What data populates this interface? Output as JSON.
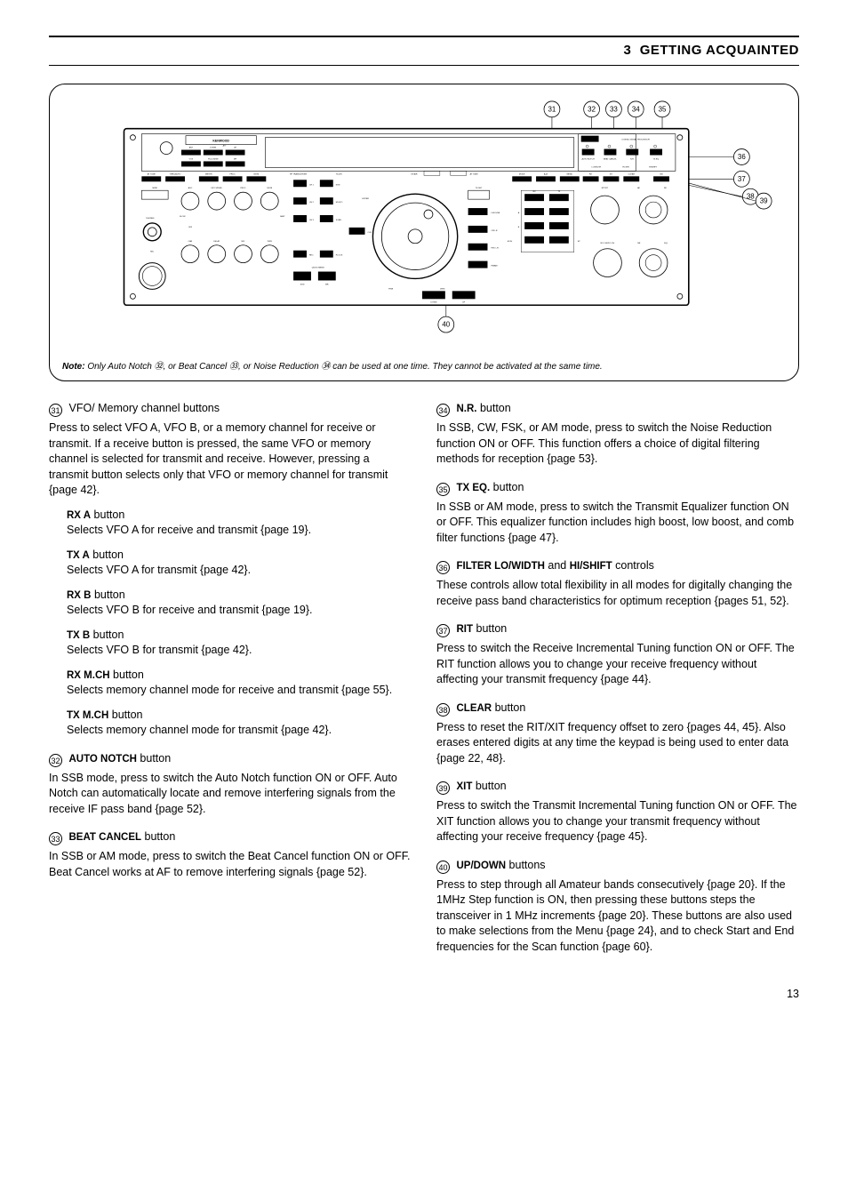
{
  "header": {
    "section_number": "3",
    "section_title": "GETTING ACQUAINTED"
  },
  "diagram": {
    "callouts": {
      "c31": "31",
      "c32": "32",
      "c33": "33",
      "c34": "34",
      "c35": "35",
      "c36": "36",
      "c37": "37",
      "c38": "38",
      "c39": "39",
      "c40": "40"
    },
    "note_prefix": "Note:",
    "note_body": "  Only Auto Notch ㉜,  or Beat Cancel ㉝, or Noise Reduction ㉞ can be used at one time.  They cannot be activated at the same time.",
    "panel": {
      "brand": "KENWOOD",
      "model_left": "HF TRANSCEIVER",
      "model_right": "TS-870",
      "on_air": "ON AIR",
      "at_tune_top": "AT TUNE",
      "dsp": "DSP",
      "dsp_sub": "DIGITAL SIGNAL PROCESSOR",
      "top_btns": [
        "AUTO NOTCH",
        "BEAT CANCEL",
        "N.R.",
        "TX EQ."
      ],
      "filter_row": [
        "LO/WIDTH",
        "FILTER",
        "HI/SHIFT"
      ],
      "row2": [
        "RIT",
        "XIT",
        "CLEAR",
        "NB"
      ],
      "ritxit": "RIT/XIT",
      "af": "AF",
      "rf": "RF",
      "rxchvfoch": "RX CH/VFO CH",
      "nr": "NR",
      "sql": "SQL",
      "left_top": [
        "ANT",
        "DOWN",
        "UP"
      ],
      "att": "ATT",
      "left_mid": [
        "VOX",
        "FULL/SEMI",
        "MF"
      ],
      "left_bot": [
        "AT TUNE",
        "THRU/AUTO"
      ],
      "send": "SEND",
      "phones": "PHONES",
      "mic": "MIC",
      "knob_row1": [
        "AGC",
        "KEY SPEED",
        "PROC",
        "MONI"
      ],
      "knob_row2": [
        "CAR",
        "DELAY",
        "MIC",
        "PWR"
      ],
      "slow": "SLOW",
      "fast": "FAST",
      "off": "OFF",
      "btn_col1": [
        "METER",
        "PROC",
        "MONI"
      ],
      "btn_col2_l": [
        "CH 1",
        "CH 2",
        "CH 3",
        "REC"
      ],
      "btn_col2_r": [
        "M.IN",
        "M>VFO",
        "SCAN",
        "F.LOCK"
      ],
      "enter": "ENTER",
      "quick_memo": "QUICK MEMO",
      "m_in": "M.IN",
      "mr": "MR",
      "clr": "CLR",
      "fine": "FINE",
      "tf_set": "TF-SET",
      "one_mhz": "1MHz",
      "down": "DOWN",
      "up": "UP",
      "mode_hdr": [
        "MODE",
        "A=B",
        "MENU"
      ],
      "modes_l": [
        "LSB /USB",
        "CW/–R",
        "FSK /–R",
        "FM/AM"
      ],
      "right_small": [
        "RX",
        "TX",
        "A",
        "B",
        "M.CH",
        "SP"
      ]
    }
  },
  "left_column": {
    "e31": {
      "num": "31",
      "label": "VFO/ Memory channel buttons",
      "body": "Press to select VFO A, VFO B, or a memory channel for receive or transmit.  If a receive button is pressed, the same VFO or memory channel is selected for transmit and receive.  However, pressing a transmit button selects only that VFO or memory channel for transmit {page 42}.",
      "subs": [
        {
          "head": "RX A",
          "tail": " button",
          "body": "Selects VFO A for receive and transmit {page 19}."
        },
        {
          "head": "TX A",
          "tail": " button",
          "body": "Selects VFO A for transmit {page 42}."
        },
        {
          "head": "RX B",
          "tail": " button",
          "body": "Selects VFO B for receive and transmit {page 19}."
        },
        {
          "head": "TX B",
          "tail": " button",
          "body": "Selects VFO B for transmit {page 42}."
        },
        {
          "head": "RX M.CH",
          "tail": " button",
          "body": "Selects memory channel mode for receive and transmit {page 55}."
        },
        {
          "head": "TX M.CH",
          "tail": " button",
          "body": "Selects memory channel mode for transmit {page 42}."
        }
      ]
    },
    "e32": {
      "num": "32",
      "label_strong": "AUTO NOTCH",
      "label_tail": " button",
      "body": "In SSB mode, press to switch the Auto Notch function ON or OFF.  Auto Notch can automatically locate and remove interfering signals from the receive IF pass band {page 52}."
    },
    "e33": {
      "num": "33",
      "label_strong": "BEAT CANCEL",
      "label_tail": " button",
      "body": "In SSB or AM mode, press to switch the Beat Cancel function ON or OFF.  Beat Cancel works at AF to remove interfering signals {page 52}."
    }
  },
  "right_column": {
    "e34": {
      "num": "34",
      "label_strong": "N.R.",
      "label_tail": " button",
      "body": "In SSB, CW, FSK, or AM mode, press to switch the Noise Reduction function ON or OFF.  This function offers a choice of digital filtering methods for reception {page 53}."
    },
    "e35": {
      "num": "35",
      "label_strong": "TX EQ.",
      "label_tail": " button",
      "body": "In SSB or AM mode, press to switch the Transmit Equalizer function ON or OFF.  This equalizer function includes high boost, low boost, and comb filter functions {page 47}."
    },
    "e36": {
      "num": "36",
      "label_strong": "FILTER LO/WIDTH",
      "label_mid": " and ",
      "label_strong2": "HI/SHIFT",
      "label_tail": " controls",
      "body": "These controls allow total flexibility in all modes for digitally changing the receive pass band characteristics for optimum reception {pages 51, 52}."
    },
    "e37": {
      "num": "37",
      "label_strong": "RIT",
      "label_tail": " button",
      "body": "Press to switch the Receive Incremental Tuning function ON or OFF.  The RIT function allows you to change your receive frequency without affecting your transmit frequency {page 44}."
    },
    "e38": {
      "num": "38",
      "label_strong": "CLEAR",
      "label_tail": " button",
      "body": "Press to reset the RIT/XIT frequency offset to zero {pages 44, 45}.  Also erases entered digits at any time the keypad is being used to enter data {page 22, 48}."
    },
    "e39": {
      "num": "39",
      "label_strong": "XIT",
      "label_tail": " button",
      "body": "Press to switch the Transmit Incremental Tuning function ON or OFF.  The XIT function allows you to change your transmit frequency without affecting your receive frequency {page 45}."
    },
    "e40": {
      "num": "40",
      "label_strong": "UP/DOWN",
      "label_tail": " buttons",
      "body": "Press to step through all Amateur bands consecutively {page 20}.  If the 1MHz Step function is ON, then pressing these buttons steps the transceiver in 1 MHz increments {page 20}.  These buttons are also used to make selections from the Menu {page 24}, and to check Start and End frequencies for the Scan function {page 60}."
    }
  },
  "page_number": "13"
}
